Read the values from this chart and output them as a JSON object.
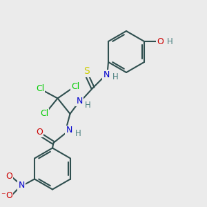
{
  "bg_color": "#ebebeb",
  "bond_color": "#2f4f4f",
  "bond_width": 1.5,
  "atoms": {
    "S": {
      "color": "#cccc00",
      "size": 10
    },
    "N": {
      "color": "#0000cc",
      "size": 9
    },
    "O": {
      "color": "#cc0000",
      "size": 9
    },
    "Cl": {
      "color": "#00cc00",
      "size": 9
    },
    "H": {
      "color": "#4a8080",
      "size": 8.5
    },
    "OH": {
      "color": "#cc0000",
      "size": 9
    },
    "H_OH": {
      "color": "#4a8080",
      "size": 8.5
    }
  },
  "xlim": [
    0,
    10
  ],
  "ylim": [
    0,
    10
  ],
  "fig_width": 3.0,
  "fig_height": 3.0,
  "dpi": 100
}
